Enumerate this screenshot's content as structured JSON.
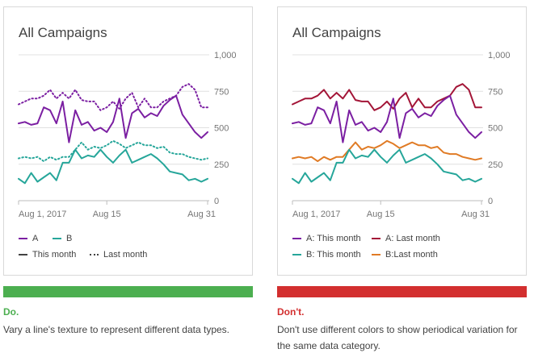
{
  "colors": {
    "purple": "#7b1fa2",
    "teal": "#26a69a",
    "dark_red": "#a31537",
    "orange": "#e07b25",
    "legend_gray": "#424242",
    "do_green": "#4caf50",
    "dont_red": "#d32f2f",
    "grid": "#e0e0e0"
  },
  "do_panel": {
    "title": "All Campaigns",
    "legend": {
      "a_label": "A",
      "b_label": "B",
      "this_month_label": "This month",
      "last_month_label": "Last month"
    },
    "verdict": "Do.",
    "caption": "Vary a line's texture to represent different data types."
  },
  "dont_panel": {
    "title": "All Campaigns",
    "legend": {
      "a_this_label": "A: This month",
      "a_last_label": "A: Last month",
      "b_this_label": "B: This month",
      "b_last_label": "B:Last month"
    },
    "verdict": "Don't.",
    "caption": "Don't use different colors to show periodical variation for the same data category."
  },
  "chart_data": {
    "type": "line",
    "x_tick_labels": [
      "Aug 1, 2017",
      "Aug 15",
      "Aug 31"
    ],
    "y_tick_labels": [
      "1,000",
      "750",
      "500",
      "250",
      "0"
    ],
    "y_ticks": [
      1000,
      750,
      500,
      250,
      0
    ],
    "ylim": [
      0,
      1000
    ],
    "days": [
      1,
      2,
      3,
      4,
      5,
      6,
      7,
      8,
      9,
      10,
      11,
      12,
      13,
      14,
      15,
      16,
      17,
      18,
      19,
      20,
      21,
      22,
      23,
      24,
      25,
      26,
      27,
      28,
      29,
      30,
      31
    ],
    "series": [
      {
        "name": "A: Last month",
        "values": [
          660,
          680,
          700,
          700,
          720,
          760,
          700,
          740,
          700,
          760,
          690,
          680,
          680,
          620,
          640,
          680,
          630,
          700,
          740,
          640,
          700,
          640,
          640,
          680,
          700,
          720,
          780,
          800,
          760,
          640,
          640
        ]
      },
      {
        "name": "A: This month",
        "values": [
          530,
          540,
          520,
          530,
          640,
          620,
          530,
          680,
          400,
          620,
          520,
          540,
          480,
          500,
          470,
          540,
          700,
          430,
          600,
          630,
          570,
          600,
          580,
          650,
          690,
          720,
          590,
          530,
          470,
          430,
          470
        ]
      },
      {
        "name": "B: Last month",
        "values": [
          290,
          300,
          290,
          300,
          270,
          300,
          280,
          300,
          300,
          350,
          400,
          350,
          370,
          360,
          380,
          410,
          390,
          360,
          380,
          400,
          380,
          380,
          360,
          370,
          330,
          320,
          320,
          300,
          290,
          280,
          290
        ]
      },
      {
        "name": "B: This month",
        "values": [
          150,
          120,
          190,
          130,
          160,
          190,
          140,
          260,
          260,
          350,
          290,
          310,
          300,
          350,
          300,
          260,
          310,
          350,
          260,
          280,
          300,
          320,
          290,
          250,
          200,
          190,
          180,
          140,
          150,
          130,
          150
        ]
      }
    ]
  }
}
